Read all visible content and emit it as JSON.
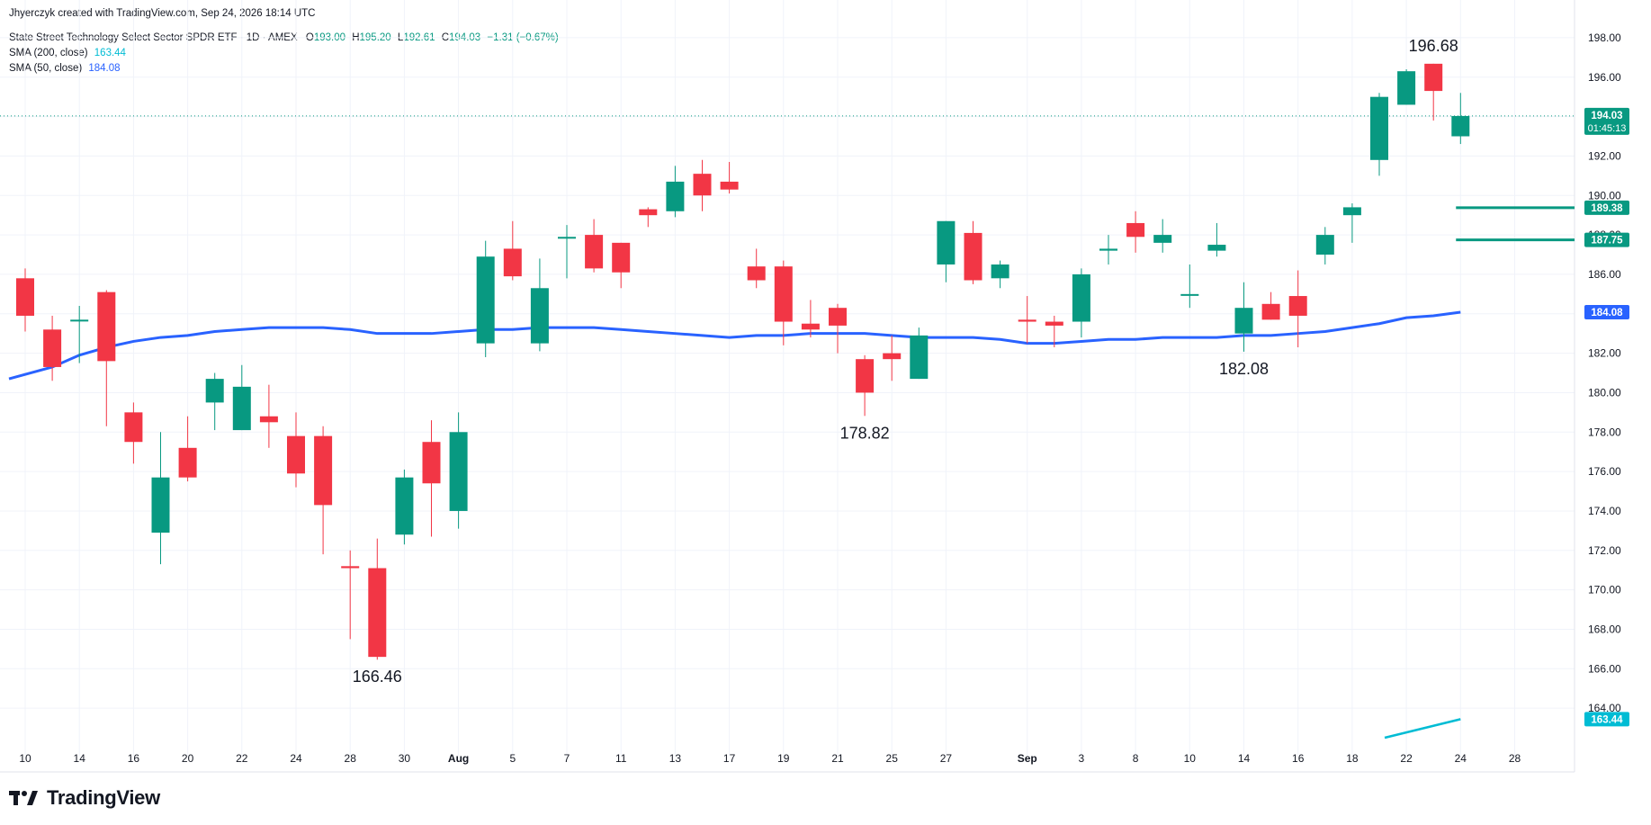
{
  "credit": "Jhyerczyk created with TradingView.com, Sep 24, 2026 18:14 UTC",
  "legend": {
    "title": "State Street Technology Select Sector SPDR ETF · 1D · AMEX",
    "o_label": "O",
    "o_value": "193.00",
    "h_label": "H",
    "h_value": "195.20",
    "l_label": "L",
    "l_value": "192.61",
    "c_label": "C",
    "c_value": "194.03",
    "change": "−1.31 (−0.67%)",
    "sma200_label": "SMA (200, close)",
    "sma200_value": "163.44",
    "sma50_label": "SMA (50, close)",
    "sma50_value": "184.08"
  },
  "footer": {
    "brand": "TradingView"
  },
  "colors": {
    "up": "#089981",
    "down": "#f23645",
    "sma50": "#2962ff",
    "sma200": "#00bcd4",
    "hline": "#089981",
    "grid": "#f0f3fa",
    "text": "#131722"
  },
  "chart_data": {
    "type": "candlestick",
    "ylim": [
      162.5,
      199.0
    ],
    "y_ticks": [
      "164.00",
      "166.00",
      "168.00",
      "170.00",
      "172.00",
      "174.00",
      "176.00",
      "178.00",
      "180.00",
      "182.00",
      "184.00",
      "186.00",
      "188.00",
      "190.00",
      "192.00",
      "194.00",
      "196.00",
      "198.00"
    ],
    "x_ticks": [
      {
        "i": 0,
        "label": "10"
      },
      {
        "i": 2,
        "label": "14"
      },
      {
        "i": 4,
        "label": "16"
      },
      {
        "i": 6,
        "label": "20"
      },
      {
        "i": 8,
        "label": "22"
      },
      {
        "i": 10,
        "label": "24"
      },
      {
        "i": 12,
        "label": "28"
      },
      {
        "i": 14,
        "label": "30"
      },
      {
        "i": 16,
        "label": "Aug"
      },
      {
        "i": 18,
        "label": "5"
      },
      {
        "i": 20,
        "label": "7"
      },
      {
        "i": 22,
        "label": "11"
      },
      {
        "i": 24,
        "label": "13"
      },
      {
        "i": 26,
        "label": "17"
      },
      {
        "i": 28,
        "label": "19"
      },
      {
        "i": 30,
        "label": "21"
      },
      {
        "i": 32,
        "label": "25"
      },
      {
        "i": 34,
        "label": "27"
      },
      {
        "i": 37,
        "label": "Sep"
      },
      {
        "i": 39,
        "label": "3"
      },
      {
        "i": 41,
        "label": "8"
      },
      {
        "i": 43,
        "label": "10"
      },
      {
        "i": 45,
        "label": "14"
      },
      {
        "i": 47,
        "label": "16"
      },
      {
        "i": 49,
        "label": "18"
      },
      {
        "i": 51,
        "label": "22"
      },
      {
        "i": 53,
        "label": "24"
      },
      {
        "i": 55,
        "label": "28"
      }
    ],
    "candles": [
      {
        "o": 185.8,
        "h": 186.3,
        "l": 183.1,
        "c": 183.9
      },
      {
        "o": 183.2,
        "h": 183.9,
        "l": 180.6,
        "c": 181.3
      },
      {
        "o": 183.7,
        "h": 184.4,
        "l": 181.5,
        "c": 183.7
      },
      {
        "o": 185.1,
        "h": 185.2,
        "l": 178.3,
        "c": 181.6
      },
      {
        "o": 179.0,
        "h": 179.5,
        "l": 176.4,
        "c": 177.5
      },
      {
        "o": 172.9,
        "h": 178.0,
        "l": 171.3,
        "c": 175.7
      },
      {
        "o": 177.2,
        "h": 178.8,
        "l": 175.5,
        "c": 175.7
      },
      {
        "o": 179.5,
        "h": 181.0,
        "l": 178.1,
        "c": 180.7
      },
      {
        "o": 178.1,
        "h": 181.4,
        "l": 178.1,
        "c": 180.3
      },
      {
        "o": 178.8,
        "h": 180.4,
        "l": 177.2,
        "c": 178.5
      },
      {
        "o": 177.8,
        "h": 179.0,
        "l": 175.2,
        "c": 175.9
      },
      {
        "o": 177.8,
        "h": 178.3,
        "l": 171.8,
        "c": 174.3
      },
      {
        "o": 171.2,
        "h": 172.0,
        "l": 167.5,
        "c": 171.1
      },
      {
        "o": 171.1,
        "h": 172.6,
        "l": 166.46,
        "c": 166.6
      },
      {
        "o": 172.8,
        "h": 176.1,
        "l": 172.3,
        "c": 175.7
      },
      {
        "o": 177.5,
        "h": 178.6,
        "l": 172.7,
        "c": 175.4
      },
      {
        "o": 174.0,
        "h": 179.0,
        "l": 173.1,
        "c": 178.0
      },
      {
        "o": 182.5,
        "h": 187.7,
        "l": 181.8,
        "c": 186.9
      },
      {
        "o": 187.3,
        "h": 188.7,
        "l": 185.7,
        "c": 185.9
      },
      {
        "o": 182.5,
        "h": 186.8,
        "l": 182.1,
        "c": 185.3
      },
      {
        "o": 187.9,
        "h": 188.5,
        "l": 185.8,
        "c": 187.9
      },
      {
        "o": 188.0,
        "h": 188.8,
        "l": 186.1,
        "c": 186.3
      },
      {
        "o": 187.6,
        "h": 187.6,
        "l": 185.3,
        "c": 186.1
      },
      {
        "o": 189.3,
        "h": 189.4,
        "l": 188.4,
        "c": 189.0
      },
      {
        "o": 189.2,
        "h": 191.5,
        "l": 188.9,
        "c": 190.7
      },
      {
        "o": 191.1,
        "h": 191.8,
        "l": 189.2,
        "c": 190.0
      },
      {
        "o": 190.7,
        "h": 191.7,
        "l": 190.1,
        "c": 190.3
      },
      {
        "o": 186.4,
        "h": 187.3,
        "l": 185.3,
        "c": 185.7
      },
      {
        "o": 186.4,
        "h": 186.7,
        "l": 182.4,
        "c": 183.6
      },
      {
        "o": 183.5,
        "h": 184.7,
        "l": 182.8,
        "c": 183.2
      },
      {
        "o": 184.3,
        "h": 184.5,
        "l": 182.0,
        "c": 183.4
      },
      {
        "o": 181.7,
        "h": 181.9,
        "l": 178.82,
        "c": 180.0
      },
      {
        "o": 182.0,
        "h": 182.9,
        "l": 180.6,
        "c": 181.7
      },
      {
        "o": 180.7,
        "h": 183.3,
        "l": 180.7,
        "c": 182.9
      },
      {
        "o": 186.5,
        "h": 188.7,
        "l": 185.6,
        "c": 188.7
      },
      {
        "o": 188.1,
        "h": 188.7,
        "l": 185.5,
        "c": 185.7
      },
      {
        "o": 185.8,
        "h": 186.7,
        "l": 185.3,
        "c": 186.5
      },
      {
        "o": 183.7,
        "h": 184.9,
        "l": 182.5,
        "c": 183.6
      },
      {
        "o": 183.6,
        "h": 183.9,
        "l": 182.3,
        "c": 183.4
      },
      {
        "o": 183.6,
        "h": 186.3,
        "l": 182.8,
        "c": 186.0
      },
      {
        "o": 187.2,
        "h": 188.0,
        "l": 186.5,
        "c": 187.3
      },
      {
        "o": 188.6,
        "h": 189.2,
        "l": 187.1,
        "c": 187.9
      },
      {
        "o": 187.6,
        "h": 188.8,
        "l": 187.1,
        "c": 188.0
      },
      {
        "o": 185.0,
        "h": 186.5,
        "l": 184.3,
        "c": 185.0
      },
      {
        "o": 187.2,
        "h": 188.6,
        "l": 186.9,
        "c": 187.5
      },
      {
        "o": 183.0,
        "h": 185.6,
        "l": 182.08,
        "c": 184.3
      },
      {
        "o": 184.5,
        "h": 185.1,
        "l": 183.7,
        "c": 183.7
      },
      {
        "o": 184.9,
        "h": 186.2,
        "l": 182.3,
        "c": 183.9
      },
      {
        "o": 187.0,
        "h": 188.4,
        "l": 186.5,
        "c": 188.0
      },
      {
        "o": 189.0,
        "h": 189.6,
        "l": 187.6,
        "c": 189.4
      },
      {
        "o": 191.8,
        "h": 195.2,
        "l": 191.0,
        "c": 195.0
      },
      {
        "o": 194.6,
        "h": 196.4,
        "l": 194.6,
        "c": 196.3
      },
      {
        "o": 196.68,
        "h": 196.68,
        "l": 193.8,
        "c": 195.3
      },
      {
        "o": 193.0,
        "h": 195.2,
        "l": 192.61,
        "c": 194.03
      }
    ],
    "sma50": [
      180.7,
      181.3,
      181.9,
      182.3,
      182.6,
      182.8,
      182.9,
      183.1,
      183.2,
      183.3,
      183.3,
      183.3,
      183.2,
      183.0,
      183.0,
      183.0,
      183.1,
      183.2,
      183.2,
      183.3,
      183.3,
      183.3,
      183.2,
      183.1,
      183.0,
      182.9,
      182.8,
      182.9,
      182.9,
      183.0,
      183.0,
      183.0,
      182.9,
      182.8,
      182.8,
      182.8,
      182.7,
      182.5,
      182.5,
      182.6,
      182.7,
      182.7,
      182.8,
      182.8,
      182.8,
      182.9,
      182.9,
      183.0,
      183.1,
      183.3,
      183.5,
      183.8,
      183.9,
      184.08
    ],
    "sma200_segment": [
      {
        "i": 50.2,
        "v": 162.5
      },
      {
        "i": 53,
        "v": 163.44
      }
    ],
    "price_line": 194.03,
    "horizontal_levels": [
      {
        "from_i": 52.5,
        "value": 189.38,
        "label": "189.38"
      },
      {
        "from_i": 52.5,
        "value": 187.75,
        "label": "187.75"
      }
    ],
    "axis_labels": [
      {
        "value": 194.03,
        "text": "194.03",
        "sub": "01:45:13",
        "color": "#089981"
      },
      {
        "value": 189.38,
        "text": "189.38",
        "color": "#089981"
      },
      {
        "value": 187.75,
        "text": "187.75",
        "color": "#089981"
      },
      {
        "value": 184.08,
        "text": "184.08",
        "color": "#2962ff"
      },
      {
        "value": 163.44,
        "text": "163.44",
        "color": "#00bcd4"
      }
    ],
    "annotations": [
      {
        "i": 13,
        "value": 166.46,
        "text": "166.46",
        "pos": "below"
      },
      {
        "i": 31,
        "value": 178.82,
        "text": "178.82",
        "pos": "below"
      },
      {
        "i": 45,
        "value": 182.08,
        "text": "182.08",
        "pos": "below"
      },
      {
        "i": 52,
        "value": 196.68,
        "text": "196.68",
        "pos": "above"
      }
    ]
  }
}
